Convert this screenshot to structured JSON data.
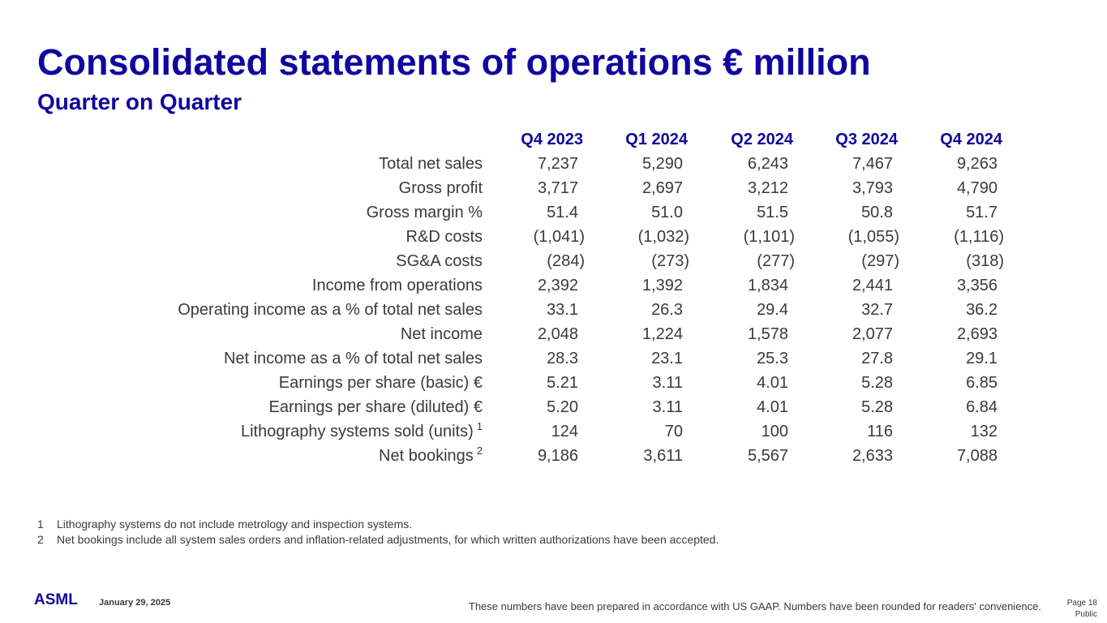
{
  "title": "Consolidated statements of operations € million",
  "subtitle": "Quarter on Quarter",
  "table": {
    "columns": [
      "Q4 2023",
      "Q1 2024",
      "Q2 2024",
      "Q3 2024",
      "Q4 2024"
    ],
    "rows": [
      {
        "label": "Total net sales",
        "values": [
          "7,237",
          "5,290",
          "6,243",
          "7,467",
          "9,263"
        ]
      },
      {
        "label": "Gross profit",
        "values": [
          "3,717",
          "2,697",
          "3,212",
          "3,793",
          "4,790"
        ]
      },
      {
        "label": "Gross margin %",
        "values": [
          "51.4",
          "51.0",
          "51.5",
          "50.8",
          "51.7"
        ]
      },
      {
        "label": "R&D costs",
        "values": [
          "(1,041)",
          "(1,032)",
          "(1,101)",
          "(1,055)",
          "(1,116)"
        ]
      },
      {
        "label": "SG&A costs",
        "values": [
          "(284)",
          "(273)",
          "(277)",
          "(297)",
          "(318)"
        ]
      },
      {
        "label": "Income from operations",
        "values": [
          "2,392",
          "1,392",
          "1,834",
          "2,441",
          "3,356"
        ]
      },
      {
        "label": "Operating income as a % of total net sales",
        "values": [
          "33.1",
          "26.3",
          "29.4",
          "32.7",
          "36.2"
        ]
      },
      {
        "label": "Net income",
        "values": [
          "2,048",
          "1,224",
          "1,578",
          "2,077",
          "2,693"
        ]
      },
      {
        "label": "Net income as a % of total net sales",
        "values": [
          "28.3",
          "23.1",
          "25.3",
          "27.8",
          "29.1"
        ]
      },
      {
        "label": "Earnings per share (basic) €",
        "values": [
          "5.21",
          "3.11",
          "4.01",
          "5.28",
          "6.85"
        ]
      },
      {
        "label": "Earnings per share (diluted) €",
        "values": [
          "5.20",
          "3.11",
          "4.01",
          "5.28",
          "6.84"
        ]
      },
      {
        "label": "Lithography systems sold (units)",
        "note": "1",
        "values": [
          "124",
          "70",
          "100",
          "116",
          "132"
        ]
      },
      {
        "label": "Net bookings",
        "note": "2",
        "values": [
          "9,186",
          "3,611",
          "5,567",
          "2,633",
          "7,088"
        ]
      }
    ]
  },
  "footnotes": [
    {
      "num": "1",
      "text": "Lithography systems do not include metrology and inspection systems."
    },
    {
      "num": "2",
      "text": "Net bookings include all system sales orders and inflation-related adjustments, for which written authorizations have been accepted."
    }
  ],
  "footer": {
    "logo_text": "ASML",
    "date": "January 29, 2025",
    "disclaimer": "These numbers have been prepared in accordance with US GAAP.  Numbers have been rounded for readers' convenience.",
    "page": "Page 18",
    "classification": "Public"
  },
  "colors": {
    "brand": "#10069f",
    "text": "#3a3a3a"
  }
}
